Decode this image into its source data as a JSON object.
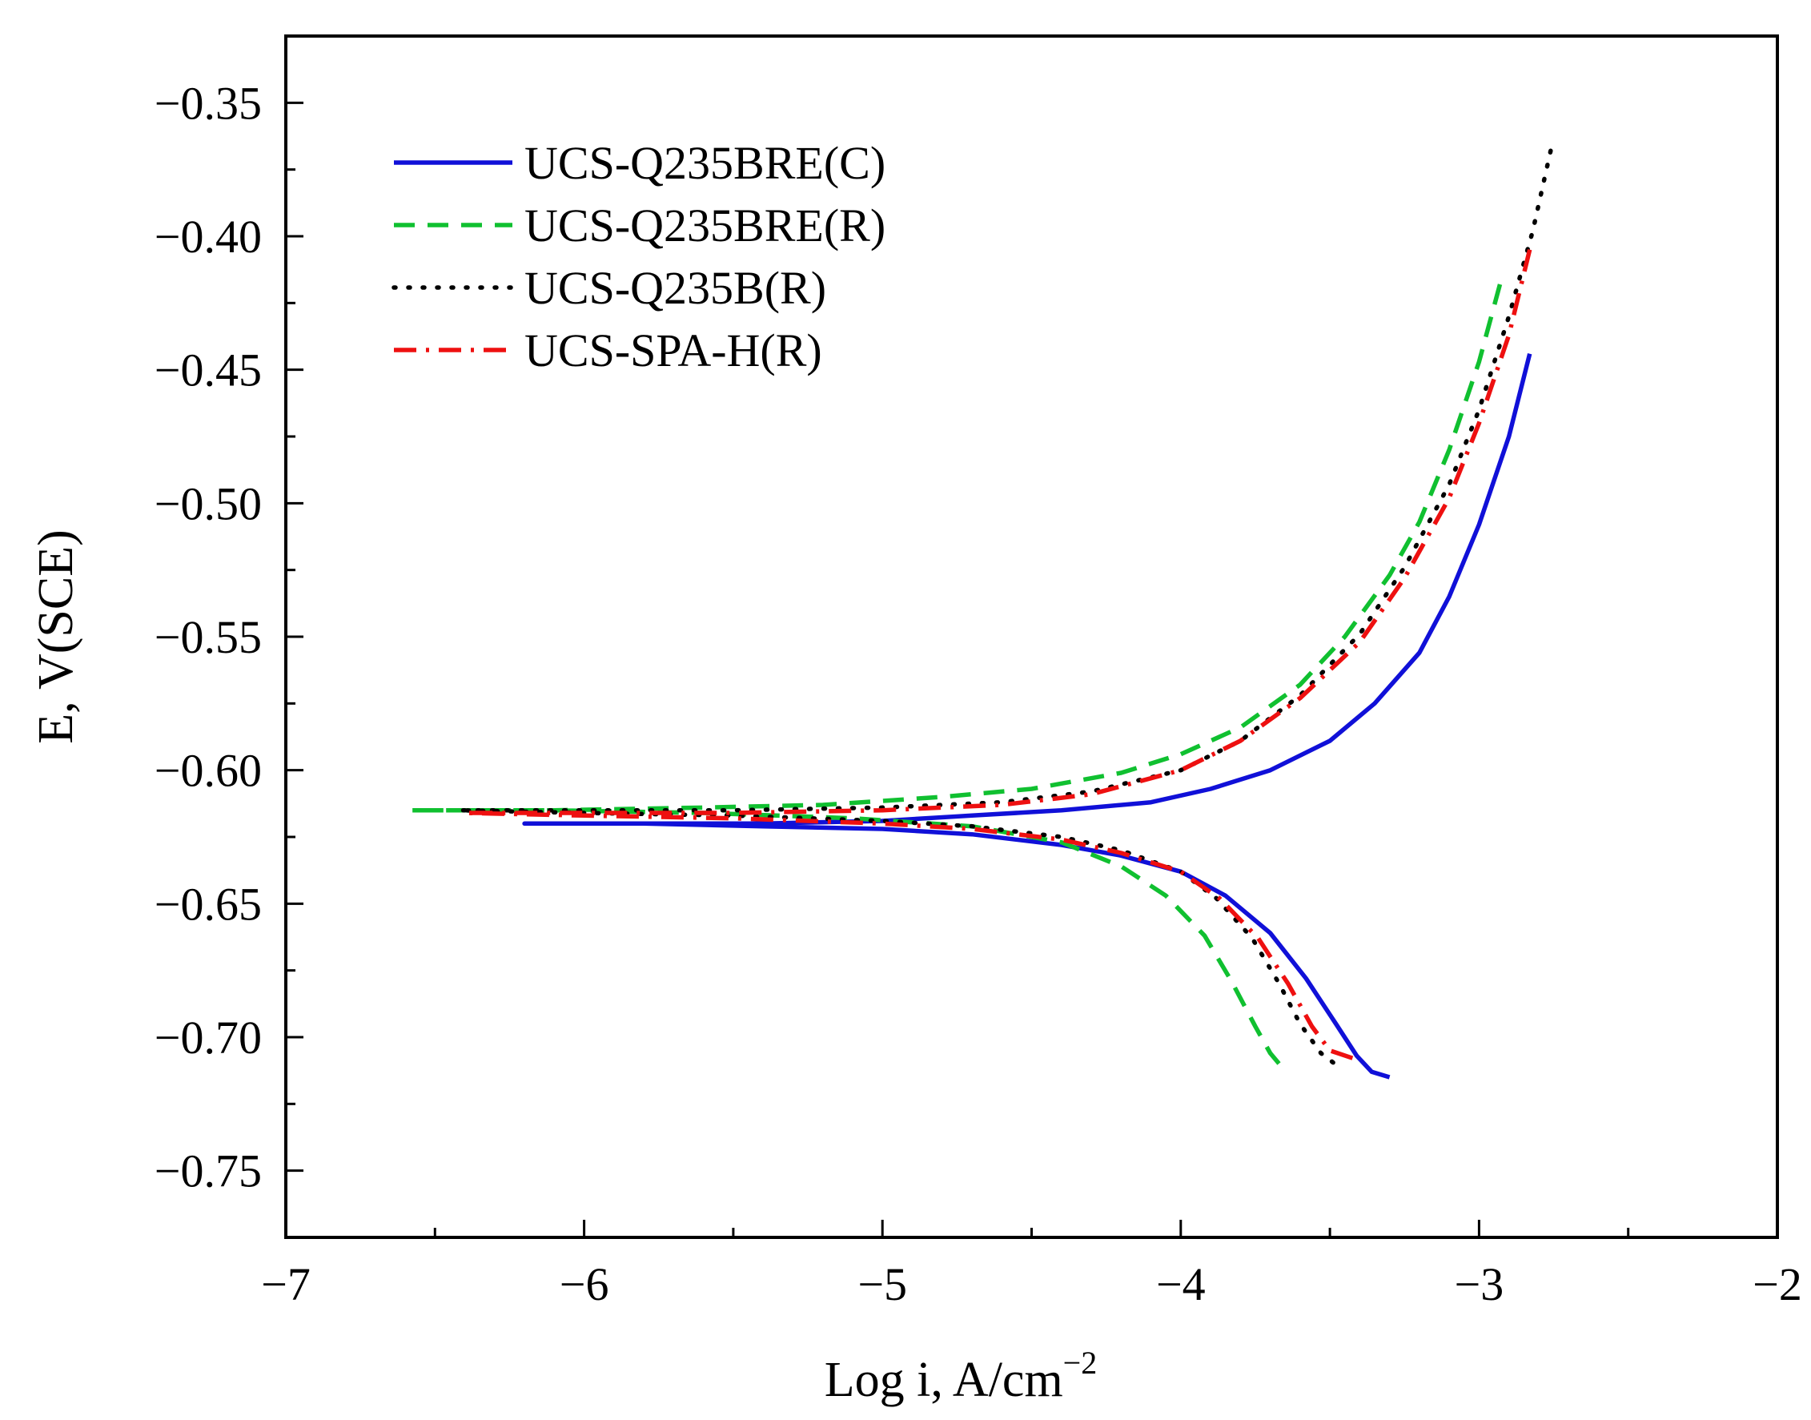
{
  "chart_data": {
    "type": "line",
    "title": "",
    "xlabel": "Log i, A/cm",
    "xlabel_superscript": "−2",
    "ylabel": "E, V(SCE)",
    "xlim": [
      -7,
      -2
    ],
    "ylim": [
      -0.775,
      -0.325
    ],
    "xticks": [
      -7,
      -6,
      -5,
      -4,
      -3,
      -2
    ],
    "xtick_labels": [
      "−7",
      "−6",
      "−5",
      "−4",
      "−3",
      "−2"
    ],
    "yticks": [
      -0.35,
      -0.4,
      -0.45,
      -0.5,
      -0.55,
      -0.6,
      -0.65,
      -0.7,
      -0.75
    ],
    "ytick_labels": [
      "−0.35",
      "−0.40",
      "−0.45",
      "−0.50",
      "−0.55",
      "−0.60",
      "−0.65",
      "−0.70",
      "−0.75"
    ],
    "grid": false,
    "legend_position": "top-left",
    "series": [
      {
        "name": "UCS-Q235BRE(C)",
        "color": "#1010d8",
        "style": "solid",
        "points": [
          [
            -2.83,
            -0.444
          ],
          [
            -2.9,
            -0.475
          ],
          [
            -3.0,
            -0.508
          ],
          [
            -3.1,
            -0.535
          ],
          [
            -3.2,
            -0.556
          ],
          [
            -3.35,
            -0.575
          ],
          [
            -3.5,
            -0.589
          ],
          [
            -3.7,
            -0.6
          ],
          [
            -3.9,
            -0.607
          ],
          [
            -4.1,
            -0.612
          ],
          [
            -4.4,
            -0.615
          ],
          [
            -4.7,
            -0.617
          ],
          [
            -5.0,
            -0.619
          ],
          [
            -5.4,
            -0.62
          ],
          [
            -5.8,
            -0.62
          ],
          [
            -6.2,
            -0.62
          ],
          [
            -5.8,
            -0.62
          ],
          [
            -5.4,
            -0.621
          ],
          [
            -5.0,
            -0.622
          ],
          [
            -4.7,
            -0.624
          ],
          [
            -4.4,
            -0.628
          ],
          [
            -4.2,
            -0.632
          ],
          [
            -4.0,
            -0.638
          ],
          [
            -3.85,
            -0.647
          ],
          [
            -3.7,
            -0.661
          ],
          [
            -3.58,
            -0.678
          ],
          [
            -3.48,
            -0.695
          ],
          [
            -3.41,
            -0.707
          ],
          [
            -3.36,
            -0.713
          ],
          [
            -3.3,
            -0.715
          ]
        ]
      },
      {
        "name": "UCS-Q235BRE(R)",
        "color": "#10c030",
        "style": "dashed",
        "points": [
          [
            -2.93,
            -0.418
          ],
          [
            -3.0,
            -0.447
          ],
          [
            -3.1,
            -0.48
          ],
          [
            -3.2,
            -0.507
          ],
          [
            -3.3,
            -0.527
          ],
          [
            -3.45,
            -0.55
          ],
          [
            -3.6,
            -0.568
          ],
          [
            -3.8,
            -0.584
          ],
          [
            -4.0,
            -0.594
          ],
          [
            -4.2,
            -0.601
          ],
          [
            -4.5,
            -0.607
          ],
          [
            -4.8,
            -0.61
          ],
          [
            -5.2,
            -0.613
          ],
          [
            -5.6,
            -0.614
          ],
          [
            -6.1,
            -0.615
          ],
          [
            -6.58,
            -0.615
          ],
          [
            -6.1,
            -0.615
          ],
          [
            -5.6,
            -0.616
          ],
          [
            -5.1,
            -0.618
          ],
          [
            -4.7,
            -0.621
          ],
          [
            -4.4,
            -0.627
          ],
          [
            -4.2,
            -0.636
          ],
          [
            -4.05,
            -0.647
          ],
          [
            -3.92,
            -0.662
          ],
          [
            -3.83,
            -0.679
          ],
          [
            -3.75,
            -0.696
          ],
          [
            -3.7,
            -0.706
          ],
          [
            -3.67,
            -0.71
          ]
        ]
      },
      {
        "name": "UCS-Q235B(R)",
        "color": "#000000",
        "style": "dotted",
        "points": [
          [
            -2.76,
            -0.368
          ],
          [
            -2.82,
            -0.398
          ],
          [
            -2.9,
            -0.43
          ],
          [
            -3.0,
            -0.465
          ],
          [
            -3.1,
            -0.493
          ],
          [
            -3.25,
            -0.524
          ],
          [
            -3.4,
            -0.549
          ],
          [
            -3.6,
            -0.572
          ],
          [
            -3.8,
            -0.589
          ],
          [
            -4.0,
            -0.6
          ],
          [
            -4.3,
            -0.608
          ],
          [
            -4.6,
            -0.612
          ],
          [
            -5.0,
            -0.614
          ],
          [
            -5.5,
            -0.615
          ],
          [
            -6.0,
            -0.615
          ],
          [
            -6.42,
            -0.615
          ],
          [
            -6.0,
            -0.616
          ],
          [
            -5.5,
            -0.617
          ],
          [
            -5.0,
            -0.619
          ],
          [
            -4.7,
            -0.621
          ],
          [
            -4.4,
            -0.625
          ],
          [
            -4.2,
            -0.63
          ],
          [
            -4.0,
            -0.638
          ],
          [
            -3.88,
            -0.648
          ],
          [
            -3.76,
            -0.663
          ],
          [
            -3.67,
            -0.68
          ],
          [
            -3.6,
            -0.695
          ],
          [
            -3.53,
            -0.706
          ],
          [
            -3.46,
            -0.712
          ]
        ]
      },
      {
        "name": "UCS-SPA-H(R)",
        "color": "#ee1010",
        "style": "dashdot",
        "points": [
          [
            -2.83,
            -0.405
          ],
          [
            -2.9,
            -0.437
          ],
          [
            -3.0,
            -0.47
          ],
          [
            -3.1,
            -0.498
          ],
          [
            -3.25,
            -0.528
          ],
          [
            -3.4,
            -0.552
          ],
          [
            -3.6,
            -0.573
          ],
          [
            -3.8,
            -0.589
          ],
          [
            -4.0,
            -0.6
          ],
          [
            -4.3,
            -0.609
          ],
          [
            -4.6,
            -0.613
          ],
          [
            -5.0,
            -0.615
          ],
          [
            -5.5,
            -0.616
          ],
          [
            -6.0,
            -0.616
          ],
          [
            -6.4,
            -0.616
          ],
          [
            -6.0,
            -0.617
          ],
          [
            -5.5,
            -0.618
          ],
          [
            -5.0,
            -0.62
          ],
          [
            -4.7,
            -0.622
          ],
          [
            -4.4,
            -0.626
          ],
          [
            -4.2,
            -0.631
          ],
          [
            -4.0,
            -0.638
          ],
          [
            -3.87,
            -0.648
          ],
          [
            -3.74,
            -0.663
          ],
          [
            -3.64,
            -0.68
          ],
          [
            -3.56,
            -0.696
          ],
          [
            -3.5,
            -0.705
          ],
          [
            -3.42,
            -0.708
          ]
        ]
      }
    ]
  }
}
